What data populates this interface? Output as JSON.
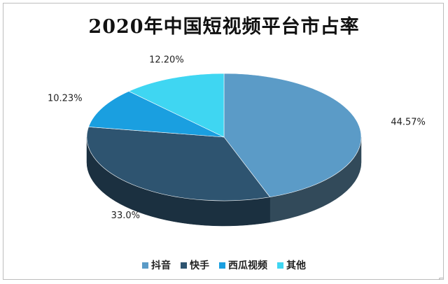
{
  "chart_data": {
    "type": "pie",
    "title": "2020年中国短视频平台市占率",
    "categories": [
      "抖音",
      "快手",
      "西瓜视频",
      "其他"
    ],
    "values": [
      44.57,
      33.0,
      10.23,
      12.2
    ],
    "data_labels": [
      "44.57%",
      "33.0%",
      "10.23%",
      "12.20%"
    ],
    "colors": [
      "#5b9bc7",
      "#2e5470",
      "#1a9fe0",
      "#3fd6f2"
    ],
    "side_colors": [
      "#324a5a",
      "#1b3040",
      "#0e5d86",
      "#2190a6"
    ],
    "legend_position": "bottom",
    "style": "3d"
  },
  "corner_mark": "⌐"
}
